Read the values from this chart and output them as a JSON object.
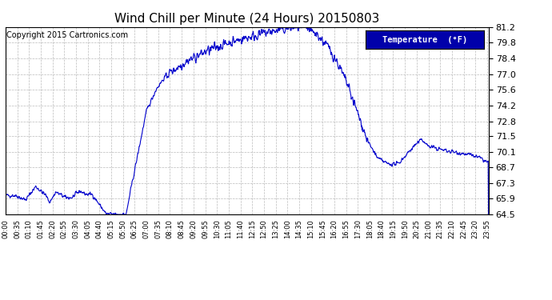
{
  "title": "Wind Chill per Minute (24 Hours) 20150803",
  "copyright": "Copyright 2015 Cartronics.com",
  "legend_label": "Temperature  (°F)",
  "line_color": "#0000CC",
  "background_color": "#ffffff",
  "grid_color": "#bbbbbb",
  "ylim": [
    64.5,
    81.2
  ],
  "yticks": [
    64.5,
    65.9,
    67.3,
    68.7,
    70.1,
    71.5,
    72.8,
    74.2,
    75.6,
    77.0,
    78.4,
    79.8,
    81.2
  ],
  "xtick_labels": [
    "00:00",
    "00:35",
    "01:10",
    "01:45",
    "02:20",
    "02:55",
    "03:30",
    "04:05",
    "04:40",
    "05:15",
    "05:50",
    "06:25",
    "07:00",
    "07:35",
    "08:10",
    "08:45",
    "09:20",
    "09:55",
    "10:30",
    "11:05",
    "11:40",
    "12:15",
    "12:50",
    "13:25",
    "14:00",
    "14:35",
    "15:10",
    "15:45",
    "16:20",
    "16:55",
    "17:30",
    "18:05",
    "18:40",
    "19:15",
    "19:50",
    "20:25",
    "21:00",
    "21:35",
    "22:10",
    "22:45",
    "23:20",
    "23:55"
  ],
  "legend_bg": "#0000AA",
  "legend_text_color": "#ffffff",
  "title_fontsize": 11,
  "copyright_fontsize": 7,
  "ytick_fontsize": 8,
  "xtick_fontsize": 6
}
